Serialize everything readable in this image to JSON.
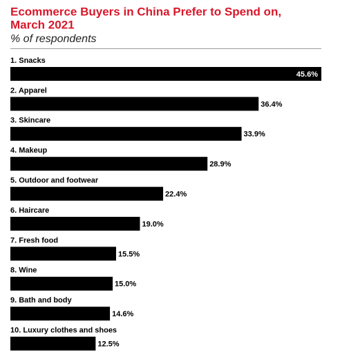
{
  "chart_data": {
    "type": "bar",
    "orientation": "horizontal",
    "title": [
      "Ecommerce Buyers in China Prefer to Spend on,",
      "March 2021"
    ],
    "subtitle": "% of respondents",
    "categories": [
      "1. Snacks",
      "2. Apparel",
      "3. Skincare",
      "4. Makeup",
      "5. Outdoor and footwear",
      "6. Haircare",
      "7. Fresh food",
      "8. Wine",
      "9. Bath and body",
      "10. Luxury clothes and shoes"
    ],
    "values": [
      45.6,
      36.4,
      33.9,
      28.9,
      22.4,
      19.0,
      15.5,
      15.0,
      14.6,
      12.5
    ],
    "value_labels": [
      "45.6%",
      "36.4%",
      "33.9%",
      "28.9%",
      "22.4%",
      "19.0%",
      "15.5%",
      "15.0%",
      "14.6%",
      "12.5%"
    ],
    "color": "#000000",
    "title_color": "#d7182a"
  }
}
